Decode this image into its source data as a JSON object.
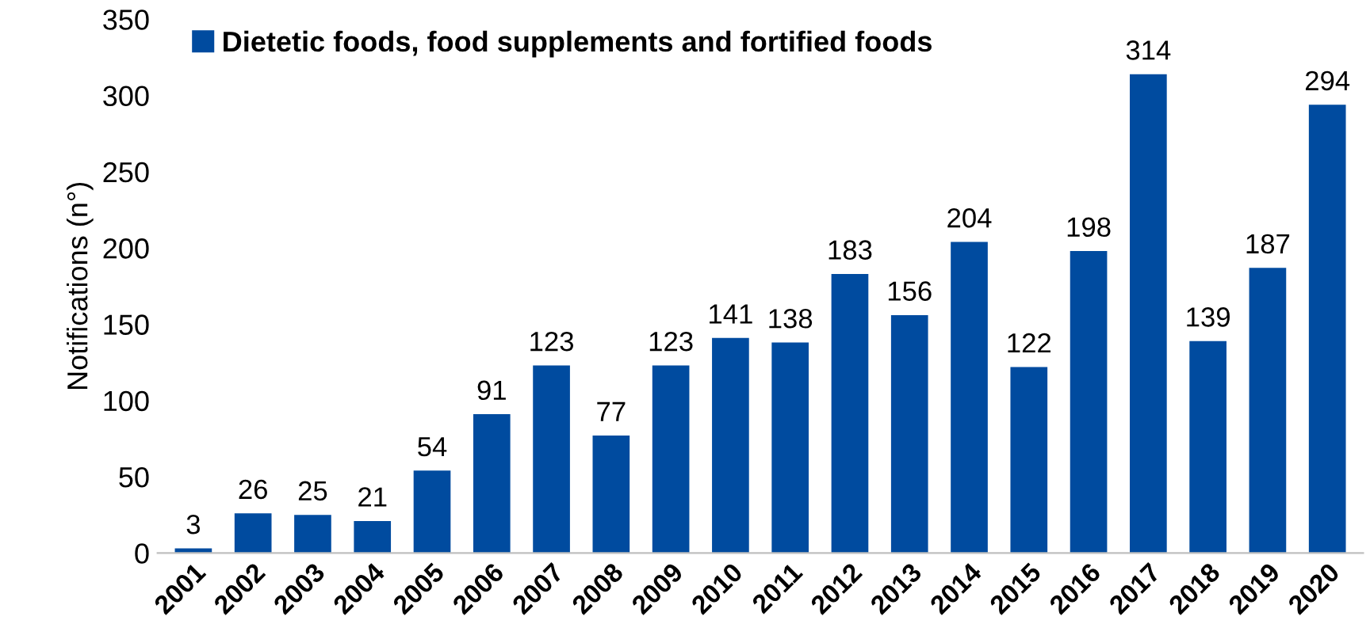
{
  "chart_data": {
    "type": "bar",
    "ylabel": "Notifications (n°)",
    "categories": [
      "2001",
      "2002",
      "2003",
      "2004",
      "2005",
      "2006",
      "2007",
      "2008",
      "2009",
      "2010",
      "2011",
      "2012",
      "2013",
      "2014",
      "2015",
      "2016",
      "2017",
      "2018",
      "2019",
      "2020"
    ],
    "series": [
      {
        "name": "Dietetic foods, food supplements and fortified foods",
        "color": "#004b9f",
        "values": [
          3,
          26,
          25,
          21,
          54,
          91,
          123,
          77,
          123,
          141,
          138,
          183,
          156,
          204,
          122,
          198,
          314,
          139,
          187,
          294
        ]
      }
    ],
    "ylim": [
      0,
      350
    ],
    "yticks": [
      0,
      50,
      100,
      150,
      200,
      250,
      300,
      350
    ],
    "data_labels": true,
    "legend": "top left",
    "grid": false
  }
}
